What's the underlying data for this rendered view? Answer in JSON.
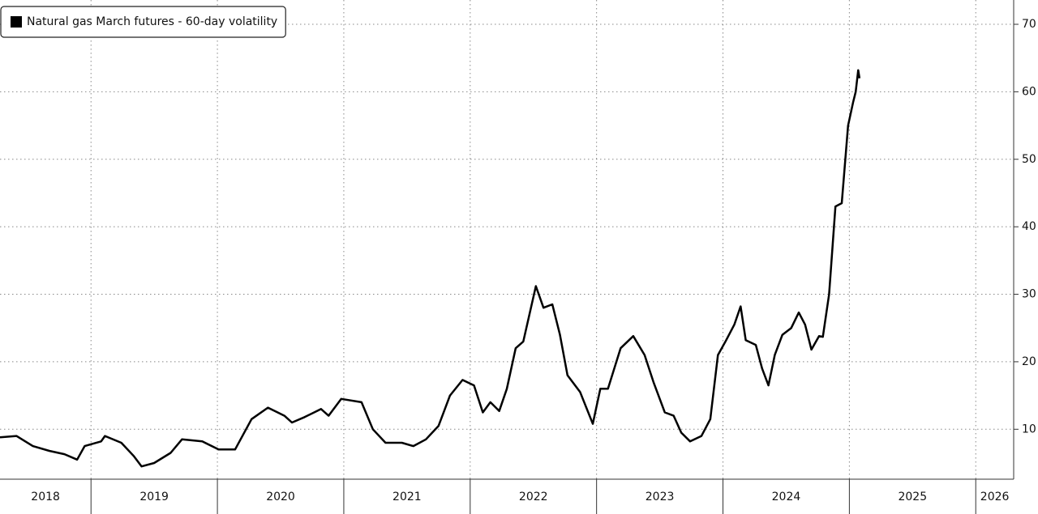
{
  "chart_data": {
    "type": "line",
    "legend_position": "upper left",
    "grid": true,
    "xlim": [
      2018.28,
      2026.3
    ],
    "xticks": [
      2018,
      2019,
      2020,
      2021,
      2022,
      2023,
      2024,
      2025,
      2026
    ],
    "ylim": [
      2.6,
      73.6
    ],
    "yticks": [
      10,
      20,
      30,
      40,
      50,
      60,
      70
    ],
    "series": [
      {
        "name": "Natural gas March futures - 60-day volatility",
        "color": "#000000",
        "x": [
          2018.28,
          2018.41,
          2018.54,
          2018.67,
          2018.79,
          2018.89,
          2018.95,
          2019.08,
          2019.11,
          2019.24,
          2019.34,
          2019.4,
          2019.5,
          2019.63,
          2019.72,
          2019.88,
          2020.01,
          2020.14,
          2020.27,
          2020.4,
          2020.53,
          2020.59,
          2020.69,
          2020.82,
          2020.88,
          2020.98,
          2021.14,
          2021.23,
          2021.33,
          2021.46,
          2021.55,
          2021.65,
          2021.75,
          2021.84,
          2021.94,
          2022.03,
          2022.1,
          2022.16,
          2022.23,
          2022.29,
          2022.36,
          2022.42,
          2022.52,
          2022.58,
          2022.65,
          2022.71,
          2022.77,
          2022.87,
          2022.97,
          2023.03,
          2023.09,
          2023.19,
          2023.29,
          2023.38,
          2023.45,
          2023.54,
          2023.61,
          2023.67,
          2023.74,
          2023.83,
          2023.9,
          2023.96,
          2024.02,
          2024.09,
          2024.14,
          2024.18,
          2024.26,
          2024.31,
          2024.36,
          2024.41,
          2024.47,
          2024.54,
          2024.6,
          2024.65,
          2024.7,
          2024.76,
          2024.79,
          2024.84,
          2024.89,
          2024.94,
          2024.99,
          2025.03,
          2025.05,
          2025.07,
          2025.08
        ],
        "values": [
          8.8,
          9,
          7.5,
          6.8,
          6.3,
          5.5,
          7.5,
          8.2,
          9,
          8,
          6,
          4.5,
          5,
          6.5,
          8.5,
          8.2,
          7,
          7,
          11.5,
          13.2,
          12,
          11,
          11.8,
          13,
          12,
          14.5,
          14,
          10,
          8,
          8,
          7.5,
          8.5,
          10.5,
          15,
          17.3,
          16.5,
          12.5,
          14,
          12.7,
          16,
          22,
          23,
          31.2,
          28,
          28.5,
          24,
          18,
          15.5,
          10.8,
          16,
          16,
          22,
          23.8,
          21,
          17,
          12.5,
          12,
          9.5,
          8.2,
          9,
          11.5,
          21,
          23,
          25.5,
          28.2,
          23.2,
          22.5,
          19,
          16.5,
          21,
          24,
          25,
          27.3,
          25.5,
          21.8,
          23.8,
          23.7,
          30,
          43,
          43.5,
          55,
          58.5,
          60,
          63.2,
          62
        ]
      }
    ]
  }
}
